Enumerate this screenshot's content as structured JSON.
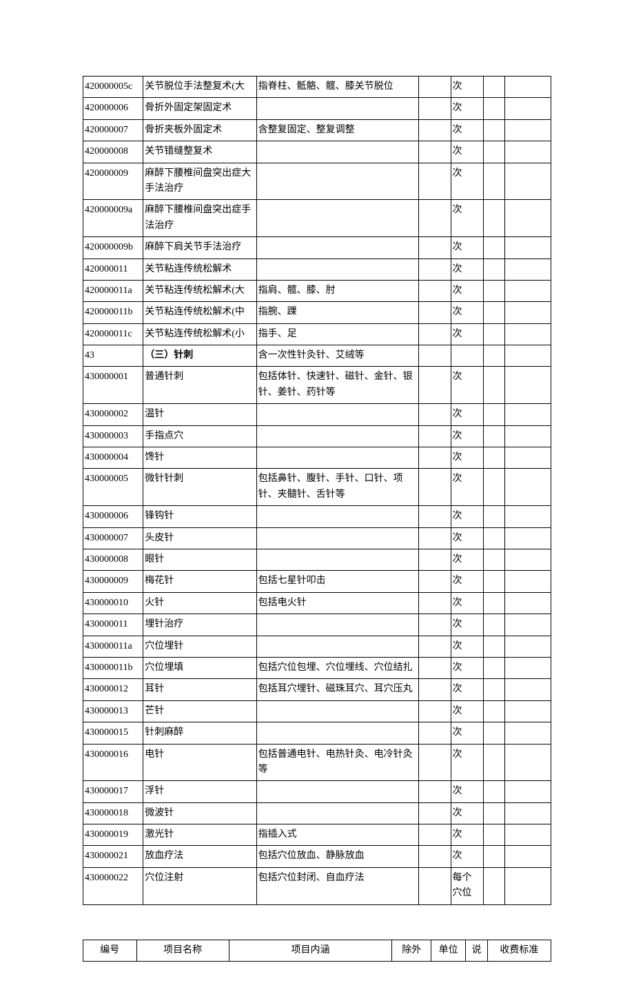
{
  "main_table": {
    "columns": [
      {
        "key": "code",
        "class": "col-code"
      },
      {
        "key": "name",
        "class": "col-name"
      },
      {
        "key": "content",
        "class": "col-content"
      },
      {
        "key": "extra",
        "class": "col-extra"
      },
      {
        "key": "unit",
        "class": "col-unit"
      },
      {
        "key": "note",
        "class": "col-note"
      },
      {
        "key": "fee",
        "class": "col-fee"
      }
    ],
    "rows": [
      {
        "code": "420000005c",
        "name": "关节脱位手法整复术(大",
        "content": "指脊柱、骶骼、髋、膝关节脱位",
        "extra": "",
        "unit": "次",
        "note": "",
        "fee": ""
      },
      {
        "code": "420000006",
        "name": "骨折外固定架固定术",
        "content": "",
        "extra": "",
        "unit": "次",
        "note": "",
        "fee": ""
      },
      {
        "code": "420000007",
        "name": "骨折夹板外固定术",
        "content": "含整复固定、整复调整",
        "extra": "",
        "unit": "次",
        "note": "",
        "fee": ""
      },
      {
        "code": "420000008",
        "name": "关节错缝整复术",
        "content": "",
        "extra": "",
        "unit": "次",
        "note": "",
        "fee": ""
      },
      {
        "code": "420000009",
        "name": "麻醉下腰椎间盘突出症大手法治疗",
        "content": "",
        "extra": "",
        "unit": "次",
        "note": "",
        "fee": ""
      },
      {
        "code": "420000009a",
        "name": "麻醉下腰椎间盘突出症手法治疗",
        "content": "",
        "extra": "",
        "unit": "次",
        "note": "",
        "fee": ""
      },
      {
        "code": "420000009b",
        "name": "麻醉下肩关节手法治疗",
        "content": "",
        "extra": "",
        "unit": "次",
        "note": "",
        "fee": ""
      },
      {
        "code": "420000011",
        "name": "关节粘连传统松解术",
        "content": "",
        "extra": "",
        "unit": "次",
        "note": "",
        "fee": ""
      },
      {
        "code": "420000011a",
        "name": "关节粘连传统松解术(大",
        "content": "指肩、髋、膝、肘",
        "extra": "",
        "unit": "次",
        "note": "",
        "fee": ""
      },
      {
        "code": "420000011b",
        "name": "关节粘连传统松解术(中",
        "content": "指腕、踝",
        "extra": "",
        "unit": "次",
        "note": "",
        "fee": ""
      },
      {
        "code": "420000011c",
        "name": "关节粘连传统松解术(小",
        "content": "指手、足",
        "extra": "",
        "unit": "次",
        "note": "",
        "fee": ""
      },
      {
        "code": "43",
        "name": "（三）针刺",
        "content": "含一次性针灸针、艾绒等",
        "extra": "",
        "unit": "",
        "note": "",
        "fee": "",
        "bold": true
      },
      {
        "code": "430000001",
        "name": "普通针刺",
        "content": "包括体针、快速针、磁针、金针、银针、姜针、药针等",
        "extra": "",
        "unit": "次",
        "note": "",
        "fee": ""
      },
      {
        "code": "430000002",
        "name": "温针",
        "content": "",
        "extra": "",
        "unit": "次",
        "note": "",
        "fee": ""
      },
      {
        "code": "430000003",
        "name": "手指点穴",
        "content": "",
        "extra": "",
        "unit": "次",
        "note": "",
        "fee": ""
      },
      {
        "code": "430000004",
        "name": "馋针",
        "content": "",
        "extra": "",
        "unit": "次",
        "note": "",
        "fee": ""
      },
      {
        "code": "430000005",
        "name": "微针针刺",
        "content": "包括鼻针、腹针、手针、口针、项针、夹髓针、舌针等",
        "extra": "",
        "unit": "次",
        "note": "",
        "fee": ""
      },
      {
        "code": "430000006",
        "name": "锋钩针",
        "content": "",
        "extra": "",
        "unit": "次",
        "note": "",
        "fee": ""
      },
      {
        "code": "430000007",
        "name": "头皮针",
        "content": "",
        "extra": "",
        "unit": "次",
        "note": "",
        "fee": ""
      },
      {
        "code": "430000008",
        "name": "眼针",
        "content": "",
        "extra": "",
        "unit": "次",
        "note": "",
        "fee": ""
      },
      {
        "code": "430000009",
        "name": "梅花针",
        "content": "包括七星针叩击",
        "extra": "",
        "unit": "次",
        "note": "",
        "fee": ""
      },
      {
        "code": "430000010",
        "name": "火针",
        "content": "包括电火针",
        "extra": "",
        "unit": "次",
        "note": "",
        "fee": ""
      },
      {
        "code": "430000011",
        "name": "埋针治疗",
        "content": "",
        "extra": "",
        "unit": "次",
        "note": "",
        "fee": ""
      },
      {
        "code": "430000011a",
        "name": "穴位埋针",
        "content": "",
        "extra": "",
        "unit": "次",
        "note": "",
        "fee": ""
      },
      {
        "code": "430000011b",
        "name": "穴位埋填",
        "content": "包括穴位包埋、穴位埋线、穴位结扎",
        "extra": "",
        "unit": "次",
        "note": "",
        "fee": ""
      },
      {
        "code": "430000012",
        "name": "耳针",
        "content": "包括耳穴埋针、磁珠耳穴、耳穴压丸",
        "extra": "",
        "unit": "次",
        "note": "",
        "fee": ""
      },
      {
        "code": "430000013",
        "name": "芒针",
        "content": "",
        "extra": "",
        "unit": "次",
        "note": "",
        "fee": ""
      },
      {
        "code": "430000015",
        "name": "针刺麻醉",
        "content": "",
        "extra": "",
        "unit": "次",
        "note": "",
        "fee": ""
      },
      {
        "code": "430000016",
        "name": "电针",
        "content": "包括普通电针、电热针灸、电冷针灸等",
        "extra": "",
        "unit": "次",
        "note": "",
        "fee": ""
      },
      {
        "code": "430000017",
        "name": "浮针",
        "content": "",
        "extra": "",
        "unit": "次",
        "note": "",
        "fee": ""
      },
      {
        "code": "430000018",
        "name": "微波针",
        "content": "",
        "extra": "",
        "unit": "次",
        "note": "",
        "fee": ""
      },
      {
        "code": "430000019",
        "name": "激光针",
        "content": "指插入式",
        "extra": "",
        "unit": "次",
        "note": "",
        "fee": ""
      },
      {
        "code": "430000021",
        "name": "放血疗法",
        "content": "包括穴位放血、静脉放血",
        "extra": "",
        "unit": "次",
        "note": "",
        "fee": ""
      },
      {
        "code": "430000022",
        "name": "穴位注射",
        "content": "包括穴位封闭、自血疗法",
        "extra": "",
        "unit": "每个穴位",
        "note": "",
        "fee": ""
      }
    ]
  },
  "footer_table": {
    "headers": {
      "code": "编号",
      "name": "项目名称",
      "content": "项目内涵",
      "extra": "除外",
      "unit": "单位",
      "note": "说",
      "fee": "收费标准"
    }
  },
  "style": {
    "font_family": "SimSun",
    "font_size_pt": 10.5,
    "border_color": "#000000",
    "background_color": "#ffffff",
    "text_color": "#000000"
  }
}
